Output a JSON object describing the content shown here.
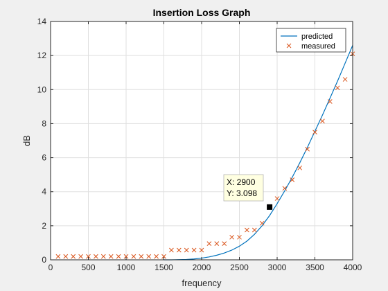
{
  "chart_data": {
    "type": "line",
    "title": "Insertion Loss Graph",
    "xlabel": "frequency",
    "ylabel": "dB",
    "xlim": [
      0,
      4000
    ],
    "ylim": [
      0,
      14
    ],
    "xticks": [
      0,
      500,
      1000,
      1500,
      2000,
      2500,
      3000,
      3500,
      4000
    ],
    "yticks": [
      0,
      2,
      4,
      6,
      8,
      10,
      12,
      14
    ],
    "grid": true,
    "legend_position": "top-right",
    "series": [
      {
        "name": "predicted",
        "style": "line",
        "color": "#0072bd",
        "x": [
          1500,
          1600,
          1700,
          1800,
          1900,
          2000,
          2100,
          2200,
          2300,
          2400,
          2500,
          2600,
          2700,
          2800,
          2900,
          3000,
          3100,
          3200,
          3300,
          3400,
          3500,
          3600,
          3700,
          3800,
          3900,
          4000
        ],
        "values": [
          0,
          0.0,
          0.01,
          0.02,
          0.05,
          0.1,
          0.17,
          0.27,
          0.4,
          0.57,
          0.8,
          1.1,
          1.5,
          2.0,
          2.6,
          3.3,
          4.05,
          4.85,
          5.7,
          6.6,
          7.55,
          8.5,
          9.5,
          10.5,
          11.55,
          12.6
        ]
      },
      {
        "name": "measured",
        "style": "marker-x",
        "color": "#d95319",
        "x": [
          100,
          200,
          300,
          400,
          500,
          600,
          700,
          800,
          900,
          1000,
          1100,
          1200,
          1300,
          1400,
          1500,
          1600,
          1700,
          1800,
          1900,
          2000,
          2100,
          2200,
          2300,
          2400,
          2500,
          2600,
          2700,
          2800,
          2900,
          3000,
          3100,
          3200,
          3300,
          3400,
          3500,
          3600,
          3700,
          3800,
          3900,
          4000
        ],
        "values": [
          0.2,
          0.2,
          0.2,
          0.2,
          0.2,
          0.2,
          0.2,
          0.2,
          0.2,
          0.2,
          0.2,
          0.2,
          0.2,
          0.2,
          0.2,
          0.57,
          0.57,
          0.57,
          0.57,
          0.57,
          0.95,
          0.95,
          0.95,
          1.33,
          1.33,
          1.75,
          1.75,
          2.15,
          3.098,
          3.6,
          4.2,
          4.7,
          5.4,
          6.5,
          7.5,
          8.15,
          9.3,
          10.1,
          10.6,
          12.1
        ]
      }
    ],
    "datatip": {
      "x": 2900,
      "y": 3.098,
      "line1": "X: 2900",
      "line2": "Y: 3.098"
    }
  }
}
